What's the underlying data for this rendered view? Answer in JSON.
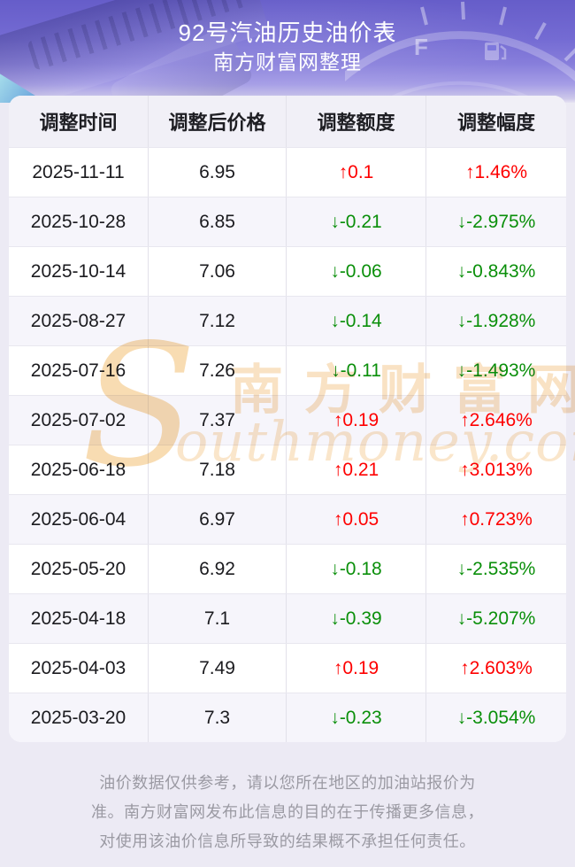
{
  "hero": {
    "title": "92号汽油历史油价表",
    "subtitle": "南方财富网整理",
    "gauge_label": "F"
  },
  "table": {
    "columns": [
      "调整时间",
      "调整后价格",
      "调整额度",
      "调整幅度"
    ],
    "rows": [
      {
        "date": "2025-11-11",
        "price": "6.95",
        "change": "↑0.1",
        "pct": "↑1.46%",
        "dir": "up"
      },
      {
        "date": "2025-10-28",
        "price": "6.85",
        "change": "↓-0.21",
        "pct": "↓-2.975%",
        "dir": "down"
      },
      {
        "date": "2025-10-14",
        "price": "7.06",
        "change": "↓-0.06",
        "pct": "↓-0.843%",
        "dir": "down"
      },
      {
        "date": "2025-08-27",
        "price": "7.12",
        "change": "↓-0.14",
        "pct": "↓-1.928%",
        "dir": "down"
      },
      {
        "date": "2025-07-16",
        "price": "7.26",
        "change": "↓-0.11",
        "pct": "↓-1.493%",
        "dir": "down"
      },
      {
        "date": "2025-07-02",
        "price": "7.37",
        "change": "↑0.19",
        "pct": "↑2.646%",
        "dir": "up"
      },
      {
        "date": "2025-06-18",
        "price": "7.18",
        "change": "↑0.21",
        "pct": "↑3.013%",
        "dir": "up"
      },
      {
        "date": "2025-06-04",
        "price": "6.97",
        "change": "↑0.05",
        "pct": "↑0.723%",
        "dir": "up"
      },
      {
        "date": "2025-05-20",
        "price": "6.92",
        "change": "↓-0.18",
        "pct": "↓-2.535%",
        "dir": "down"
      },
      {
        "date": "2025-04-18",
        "price": "7.1",
        "change": "↓-0.39",
        "pct": "↓-5.207%",
        "dir": "down"
      },
      {
        "date": "2025-04-03",
        "price": "7.49",
        "change": "↑0.19",
        "pct": "↑2.603%",
        "dir": "up"
      },
      {
        "date": "2025-03-20",
        "price": "7.3",
        "change": "↓-0.23",
        "pct": "↓-3.054%",
        "dir": "down"
      }
    ]
  },
  "watermark": {
    "initial": "S",
    "cn": "南方财富网",
    "en": "outhmoney.com"
  },
  "footer": {
    "lines": [
      "油价数据仅供参考，请以您所在地区的加油站报价为",
      "准。南方财富网发布此信息的目的在于传播更多信息，",
      "对使用该油价信息所导致的结果概不承担任何责任。"
    ]
  },
  "colors": {
    "up_red": "#fe0000",
    "down_green": "#0a8f0a",
    "header_purple": "#746bd3",
    "page_lavender": "#eceaf4",
    "watermark_tan": "#f3c682",
    "stripe_row": "#f6f5fb",
    "table_head_bg": "#f1f0f7"
  }
}
